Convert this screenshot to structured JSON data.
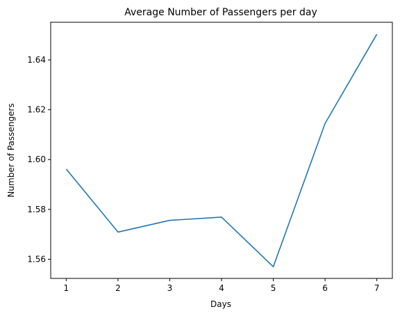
{
  "chart_data": {
    "type": "line",
    "title": "Average Number of Passengers per day",
    "xlabel": "Days",
    "ylabel": "Number of Passengers",
    "x": [
      1,
      2,
      3,
      4,
      5,
      6,
      7
    ],
    "series": [
      {
        "values": [
          1.5962,
          1.5709,
          1.5756,
          1.5769,
          1.557,
          1.6145,
          1.6503
        ],
        "color": "#1f77b4"
      }
    ],
    "xlim": [
      0.7,
      7.3
    ],
    "ylim": [
      1.5523,
      1.6551
    ],
    "xticks": [
      1,
      2,
      3,
      4,
      5,
      6,
      7
    ],
    "xtick_labels": [
      "1",
      "2",
      "3",
      "4",
      "5",
      "6",
      "7"
    ],
    "yticks": [
      1.56,
      1.58,
      1.6,
      1.62,
      1.64
    ],
    "ytick_labels": [
      "1.56",
      "1.58",
      "1.60",
      "1.62",
      "1.64"
    ],
    "grid": false,
    "legend": "none"
  }
}
